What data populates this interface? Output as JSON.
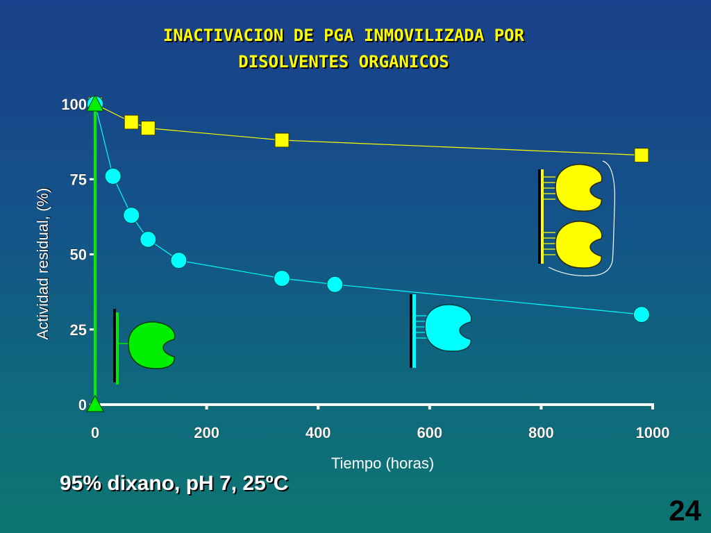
{
  "slide": {
    "title_line1": "INACTIVACION DE PGA INMOVILIZADA POR",
    "title_line2": "DISOLVENTES ORGANICOS",
    "conditions": "95% dixano, pH 7, 25ºC",
    "slide_number": "24"
  },
  "colors": {
    "title": "#ffff00",
    "series_yellow": "#ffff00",
    "series_cyan": "#00ffff",
    "series_green": "#00ee00",
    "axis": "#ffffff"
  },
  "chart_data": {
    "type": "scatter",
    "xlabel": "Tiempo (horas)",
    "ylabel": "Actividad residual, (%)",
    "xlim": [
      0,
      1000
    ],
    "ylim": [
      0,
      100
    ],
    "x_ticks": [
      0,
      200,
      400,
      600,
      800,
      1000
    ],
    "y_ticks": [
      0,
      25,
      50,
      75,
      100
    ],
    "x_tick_labels": [
      "0",
      "200",
      "400",
      "600",
      "800",
      "1000"
    ],
    "y_tick_labels": [
      "0",
      "25",
      "50",
      "75",
      "100"
    ],
    "series": [
      {
        "marker": "square",
        "color": "#ffff00",
        "x": [
          0,
          65,
          95,
          335,
          980
        ],
        "y": [
          100,
          94,
          92,
          88,
          83
        ]
      },
      {
        "marker": "circle",
        "color": "#00ffff",
        "x": [
          0,
          32,
          65,
          95,
          150,
          335,
          430,
          980
        ],
        "y": [
          100,
          76,
          63,
          55,
          48,
          42,
          40,
          30
        ]
      },
      {
        "marker": "triangle",
        "color": "#00ee00",
        "x": [
          0,
          0
        ],
        "y": [
          0,
          100
        ]
      }
    ]
  }
}
